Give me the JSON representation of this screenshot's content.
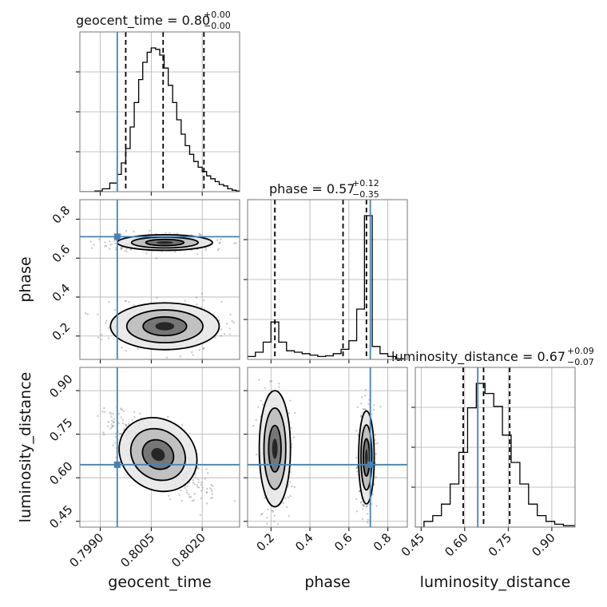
{
  "chart_data": {
    "type": "corner",
    "parameters": [
      "geocent_time",
      "phase",
      "luminosity_distance"
    ],
    "truths": {
      "geocent_time": 0.7995,
      "phase": 0.71,
      "luminosity_distance": 0.645
    },
    "grid": true,
    "titles": [
      {
        "param": "geocent_time",
        "text": "geocent_time = 0.80",
        "plus": "+0.00",
        "minus": "−0.00"
      },
      {
        "param": "phase",
        "text": "phase = 0.57",
        "plus": "+0.12",
        "minus": "−0.35"
      },
      {
        "param": "luminosity_distance",
        "text": "luminosity_distance = 0.67",
        "plus": "+0.09",
        "minus": "−0.07"
      }
    ],
    "axes": {
      "geocent_time": {
        "xlabel": "geocent_time",
        "range": [
          0.7984,
          0.8031
        ],
        "ticks": [
          0.799,
          0.8005,
          0.802
        ],
        "tick_labels": [
          "0.7990",
          "0.8005",
          "0.8020"
        ]
      },
      "phase": {
        "xlabel": "phase",
        "ylabel": "phase",
        "range": [
          0.08,
          0.9
        ],
        "ticks": [
          0.2,
          0.4,
          0.6,
          0.8
        ],
        "tick_labels": [
          "0.2",
          "0.4",
          "0.6",
          "0.8"
        ]
      },
      "luminosity_distance": {
        "xlabel": "luminosity_distance",
        "ylabel": "luminosity_distance",
        "range": [
          0.43,
          0.98
        ],
        "ticks": [
          0.45,
          0.6,
          0.75,
          0.9
        ],
        "tick_labels": [
          "0.45",
          "0.60",
          "0.75",
          "0.90"
        ]
      }
    },
    "histograms": {
      "geocent_time": {
        "bin_edges": [
          0.7984,
          0.79862,
          0.79884,
          0.79906,
          0.79928,
          0.7995,
          0.79962,
          0.79975,
          0.79988,
          0.8,
          0.80013,
          0.80025,
          0.80038,
          0.8005,
          0.80063,
          0.80075,
          0.80088,
          0.801,
          0.80113,
          0.80125,
          0.80138,
          0.8015,
          0.80163,
          0.80175,
          0.80188,
          0.802,
          0.80213,
          0.80225,
          0.80238,
          0.8025,
          0.80263,
          0.80275,
          0.80288,
          0.803,
          0.8031
        ],
        "counts": [
          0.0,
          0.0,
          0.005,
          0.02,
          0.06,
          0.12,
          0.2,
          0.3,
          0.45,
          0.62,
          0.78,
          0.9,
          0.97,
          1.0,
          0.99,
          0.95,
          0.86,
          0.74,
          0.62,
          0.5,
          0.4,
          0.32,
          0.26,
          0.21,
          0.17,
          0.14,
          0.11,
          0.09,
          0.07,
          0.05,
          0.04,
          0.02,
          0.01,
          0.005
        ],
        "quantiles": [
          0.79975,
          0.80085,
          0.80205
        ]
      },
      "phase": {
        "bin_edges": [
          0.08,
          0.12,
          0.16,
          0.2,
          0.24,
          0.28,
          0.32,
          0.36,
          0.4,
          0.44,
          0.48,
          0.52,
          0.56,
          0.6,
          0.64,
          0.68,
          0.72,
          0.76,
          0.8,
          0.84,
          0.88,
          0.9
        ],
        "counts": [
          0.02,
          0.05,
          0.12,
          0.26,
          0.12,
          0.06,
          0.05,
          0.04,
          0.03,
          0.02,
          0.025,
          0.04,
          0.07,
          0.13,
          0.35,
          1.0,
          0.09,
          0.04,
          0.02,
          0.005,
          0.0
        ],
        "quantiles": [
          0.22,
          0.57,
          0.69
        ]
      },
      "luminosity_distance": {
        "bin_edges": [
          0.43,
          0.46,
          0.49,
          0.52,
          0.55,
          0.58,
          0.61,
          0.64,
          0.67,
          0.7,
          0.73,
          0.76,
          0.79,
          0.82,
          0.85,
          0.88,
          0.91,
          0.94,
          0.98
        ],
        "counts": [
          0.0,
          0.04,
          0.08,
          0.16,
          0.3,
          0.52,
          0.83,
          1.0,
          0.93,
          0.84,
          0.64,
          0.45,
          0.3,
          0.16,
          0.08,
          0.04,
          0.02,
          0.01
        ],
        "quantiles": [
          0.595,
          0.665,
          0.755
        ]
      }
    },
    "joint_2d": [
      {
        "x": "geocent_time",
        "y": "phase",
        "modes": [
          {
            "x": 0.8009,
            "y": 0.68,
            "sx": 0.0007,
            "sy": 0.02,
            "w": 0.55,
            "rho": 0.0
          },
          {
            "x": 0.8009,
            "y": 0.25,
            "sx": 0.0008,
            "sy": 0.06,
            "w": 0.45,
            "rho": 0.0
          }
        ]
      },
      {
        "x": "geocent_time",
        "y": "luminosity_distance",
        "modes": [
          {
            "x": 0.8007,
            "y": 0.68,
            "sx": 0.0006,
            "sy": 0.06,
            "w": 1.0,
            "rho": -0.75
          }
        ]
      },
      {
        "x": "phase",
        "y": "luminosity_distance",
        "modes": [
          {
            "x": 0.22,
            "y": 0.7,
            "sx": 0.04,
            "sy": 0.1,
            "w": 0.4,
            "rho": 0.0
          },
          {
            "x": 0.69,
            "y": 0.67,
            "sx": 0.02,
            "sy": 0.08,
            "w": 0.6,
            "rho": 0.0
          }
        ]
      }
    ],
    "colors": {
      "truth": "#4682b4",
      "hist": "#000000",
      "contour": "#000000",
      "grid": "#b0b0b0",
      "points": "#666666"
    }
  }
}
